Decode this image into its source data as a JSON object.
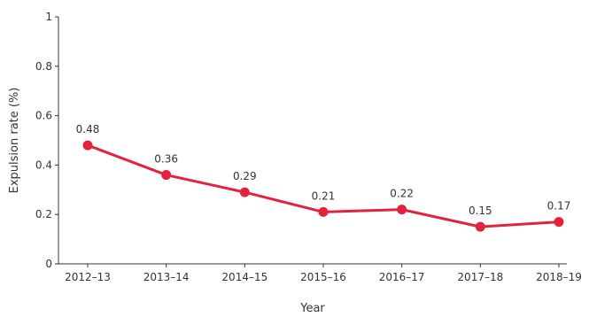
{
  "chart_data": {
    "type": "line",
    "title": "",
    "xlabel": "Year",
    "ylabel": "Expulsion rate (%)",
    "ylim": [
      0,
      1
    ],
    "y_ticks": [
      0,
      0.2,
      0.4,
      0.6,
      0.8,
      1
    ],
    "y_tick_labels": [
      "0",
      "0.2",
      "0.4",
      "0.6",
      "0.8",
      "1"
    ],
    "grid": false,
    "legend": "none",
    "categories": [
      "2012–13",
      "2013–14",
      "2014–15",
      "2015–16",
      "2016–17",
      "2017–18",
      "2018–19"
    ],
    "series": [
      {
        "values": [
          0.48,
          0.36,
          0.29,
          0.21,
          0.22,
          0.15,
          0.17
        ],
        "value_labels": [
          "0.48",
          "0.36",
          "0.29",
          "0.21",
          "0.22",
          "0.15",
          "0.17"
        ],
        "color": "#e2233b"
      }
    ]
  }
}
